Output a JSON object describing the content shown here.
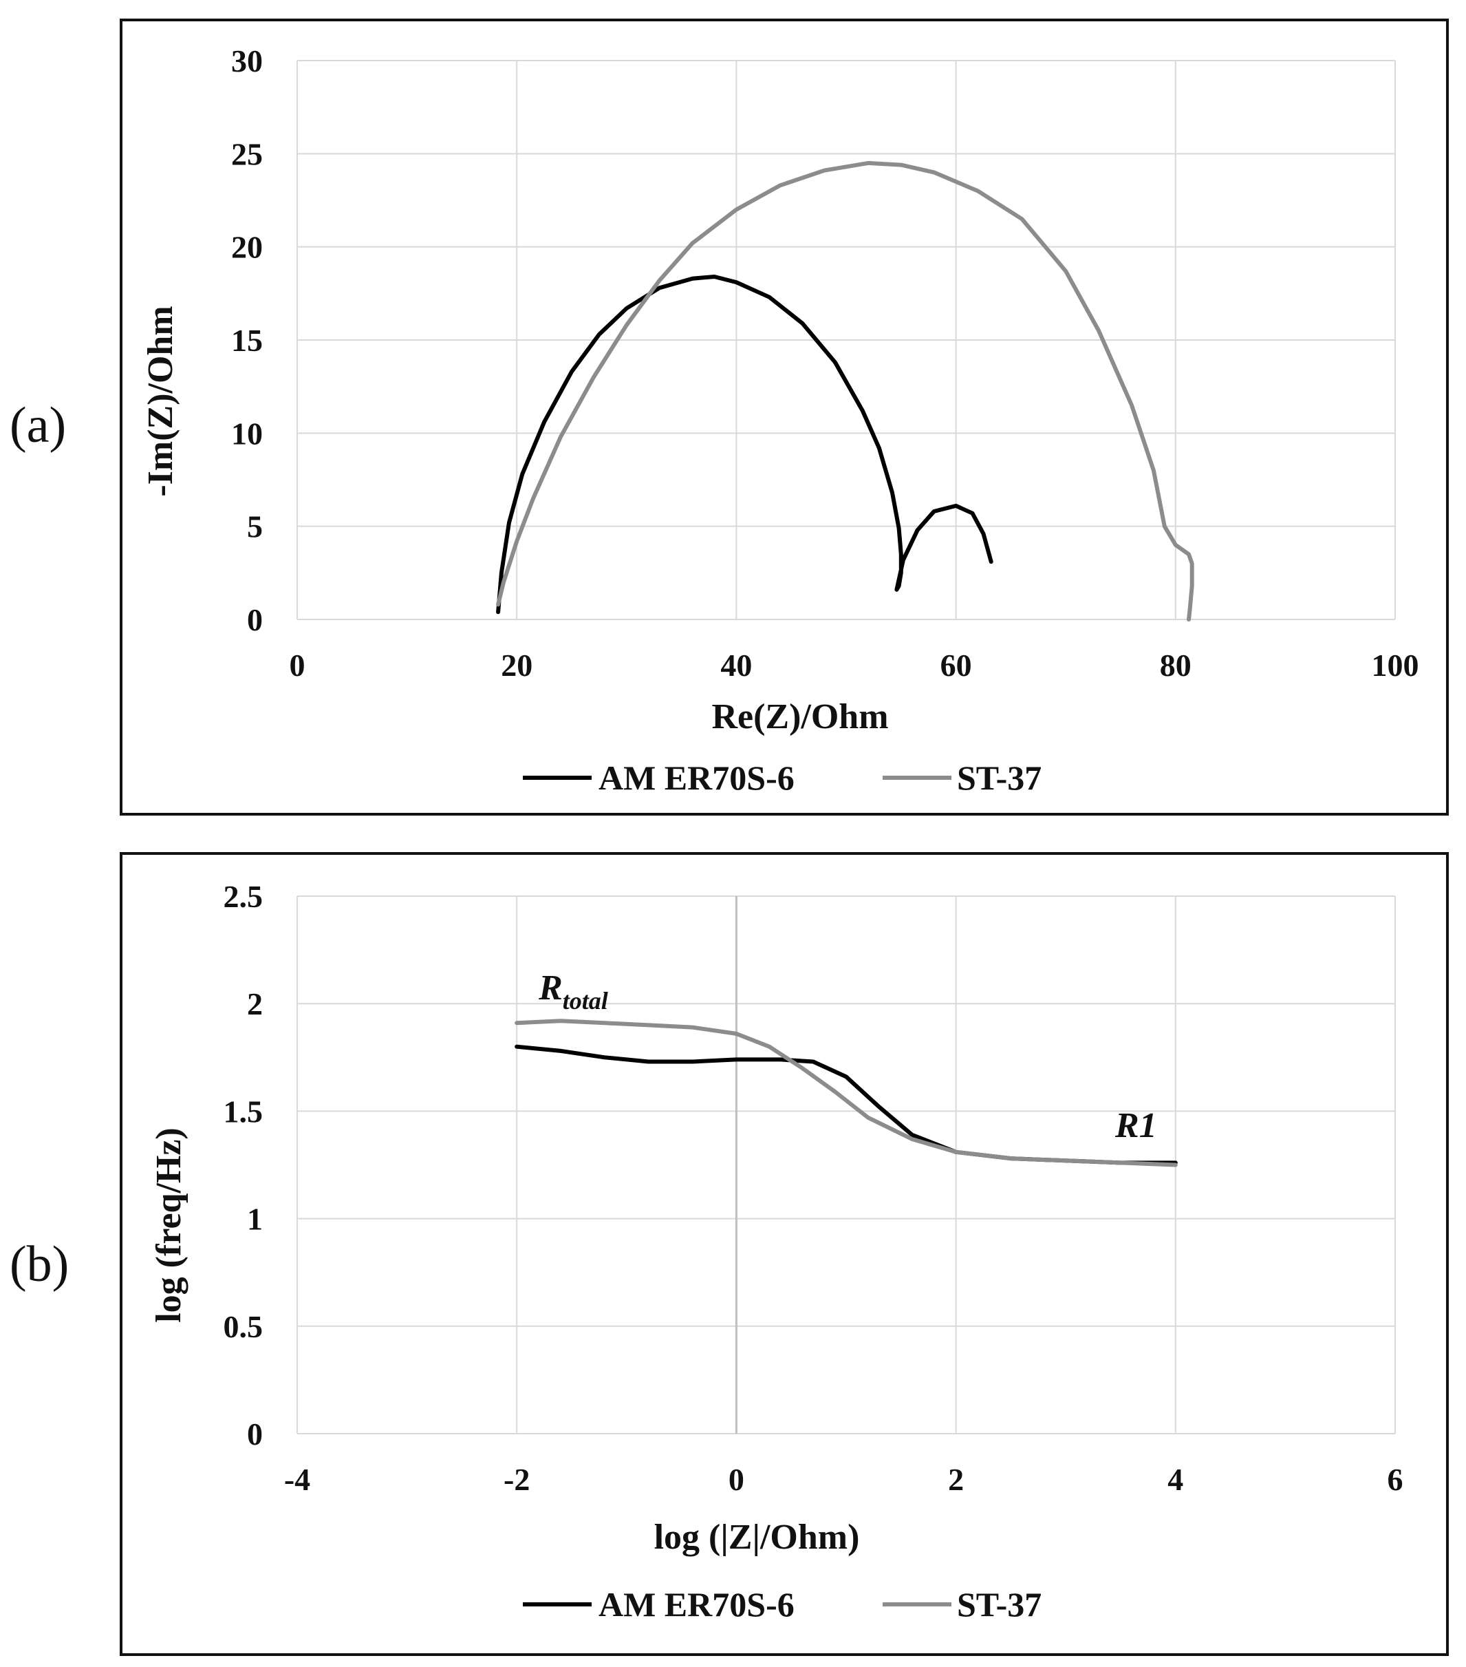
{
  "colors": {
    "am": "#000000",
    "st": "#8c8c8c"
  },
  "chart_data": [
    {
      "panel": "(a)",
      "type": "line",
      "title": "",
      "xlabel": "Re(Z)/Ohm",
      "ylabel": "-Im(Z)/Ohm",
      "xlim": [
        0,
        100
      ],
      "ylim": [
        0,
        30
      ],
      "xticks": [
        0,
        20,
        40,
        60,
        80,
        100
      ],
      "yticks": [
        0,
        5,
        10,
        15,
        20,
        25,
        30
      ],
      "xtick_labels": [
        "0",
        "20",
        "40",
        "60",
        "80",
        "100"
      ],
      "ytick_labels": [
        "0",
        "5",
        "10",
        "15",
        "20",
        "25",
        "30"
      ],
      "grid": true,
      "legend_position": "bottom-center",
      "series": [
        {
          "name": "AM ER70S-6",
          "color": "#000000",
          "points": [
            [
              18.3,
              0.4
            ],
            [
              18.6,
              2.5
            ],
            [
              19.3,
              5.2
            ],
            [
              20.5,
              7.8
            ],
            [
              22.5,
              10.6
            ],
            [
              25,
              13.3
            ],
            [
              27.5,
              15.3
            ],
            [
              30,
              16.7
            ],
            [
              33,
              17.8
            ],
            [
              36,
              18.3
            ],
            [
              38,
              18.4
            ],
            [
              40,
              18.1
            ],
            [
              43,
              17.3
            ],
            [
              46,
              15.9
            ],
            [
              49,
              13.8
            ],
            [
              51.5,
              11.2
            ],
            [
              53,
              9.2
            ],
            [
              54.2,
              6.8
            ],
            [
              54.8,
              4.9
            ],
            [
              55.0,
              3.5
            ],
            [
              55.0,
              2.5
            ],
            [
              54.8,
              1.8
            ],
            [
              54.6,
              1.6
            ],
            [
              55.2,
              3.2
            ],
            [
              56.5,
              4.8
            ],
            [
              58,
              5.8
            ],
            [
              60,
              6.1
            ],
            [
              61.5,
              5.7
            ],
            [
              62.5,
              4.6
            ],
            [
              63.2,
              3.1
            ]
          ]
        },
        {
          "name": "ST-37",
          "color": "#8c8c8c",
          "points": [
            [
              18.3,
              0.8
            ],
            [
              18.8,
              2.0
            ],
            [
              20,
              4.2
            ],
            [
              21.5,
              6.5
            ],
            [
              24,
              9.8
            ],
            [
              27,
              13.0
            ],
            [
              30,
              15.8
            ],
            [
              33,
              18.2
            ],
            [
              36,
              20.2
            ],
            [
              40,
              22.0
            ],
            [
              44,
              23.3
            ],
            [
              48,
              24.1
            ],
            [
              52,
              24.5
            ],
            [
              55,
              24.4
            ],
            [
              58,
              24.0
            ],
            [
              62,
              23.0
            ],
            [
              66,
              21.5
            ],
            [
              70,
              18.7
            ],
            [
              73,
              15.5
            ],
            [
              76,
              11.5
            ],
            [
              78,
              8.0
            ],
            [
              79,
              5.0
            ],
            [
              80,
              4.0
            ],
            [
              81.2,
              3.5
            ],
            [
              81.5,
              3.0
            ],
            [
              81.5,
              1.8
            ],
            [
              81.3,
              0.5
            ],
            [
              81.2,
              0
            ]
          ]
        }
      ]
    },
    {
      "panel": "(b)",
      "type": "line",
      "title": "",
      "xlabel": "log (|Z|/Ohm)",
      "ylabel": "log (freq/Hz)",
      "xlim": [
        -4,
        6
      ],
      "ylim": [
        0,
        2.5
      ],
      "xticks": [
        -4,
        -2,
        0,
        2,
        4,
        6
      ],
      "yticks": [
        0,
        0.5,
        1,
        1.5,
        2,
        2.5
      ],
      "xtick_labels": [
        "-4",
        "-2",
        "0",
        "2",
        "4",
        "6"
      ],
      "ytick_labels": [
        "0",
        "0.5",
        "1",
        "1.5",
        "2",
        "2.5"
      ],
      "grid": true,
      "legend_position": "bottom-center",
      "annotations": [
        {
          "text": "R",
          "sub": "total",
          "x": -1.8,
          "y": 2.02
        },
        {
          "text": "R1",
          "sub": "",
          "x": 3.45,
          "y": 1.38
        }
      ],
      "series": [
        {
          "name": "AM ER70S-6",
          "color": "#000000",
          "points": [
            [
              -2,
              1.8
            ],
            [
              -1.6,
              1.78
            ],
            [
              -1.2,
              1.75
            ],
            [
              -0.8,
              1.73
            ],
            [
              -0.4,
              1.73
            ],
            [
              0,
              1.74
            ],
            [
              0.4,
              1.74
            ],
            [
              0.7,
              1.73
            ],
            [
              1.0,
              1.66
            ],
            [
              1.3,
              1.52
            ],
            [
              1.6,
              1.39
            ],
            [
              2.0,
              1.31
            ],
            [
              2.5,
              1.28
            ],
            [
              3.0,
              1.27
            ],
            [
              3.5,
              1.26
            ],
            [
              4.0,
              1.26
            ]
          ]
        },
        {
          "name": "ST-37",
          "color": "#8c8c8c",
          "points": [
            [
              -2,
              1.91
            ],
            [
              -1.6,
              1.92
            ],
            [
              -1.2,
              1.91
            ],
            [
              -0.8,
              1.9
            ],
            [
              -0.4,
              1.89
            ],
            [
              0,
              1.86
            ],
            [
              0.3,
              1.8
            ],
            [
              0.6,
              1.7
            ],
            [
              0.9,
              1.59
            ],
            [
              1.2,
              1.47
            ],
            [
              1.6,
              1.37
            ],
            [
              2.0,
              1.31
            ],
            [
              2.5,
              1.28
            ],
            [
              3.0,
              1.27
            ],
            [
              3.5,
              1.26
            ],
            [
              4.0,
              1.25
            ]
          ]
        }
      ]
    }
  ]
}
